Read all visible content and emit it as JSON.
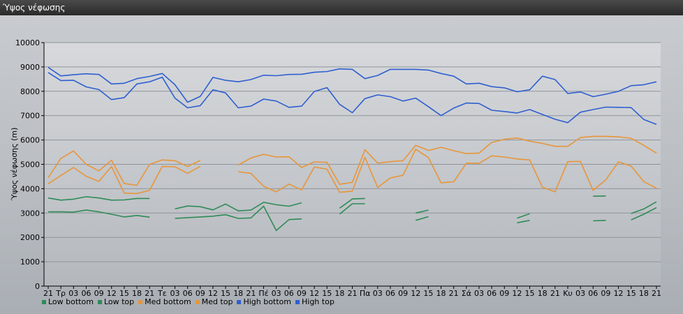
{
  "window": {
    "title": "Ύψος νέφωσης"
  },
  "colors": {
    "low": "#2e8b57",
    "med": "#e8953a",
    "high": "#2f5fd0",
    "grid": "#8f959c",
    "plot_bg_top": "#d7d9dc",
    "plot_bg_bottom": "#b4b8bd"
  },
  "chart_data": {
    "type": "line",
    "title": "",
    "ylabel": "Ύψος νέφωσης (m)",
    "xlabel": "",
    "ylim": [
      0,
      10000
    ],
    "yticks": [
      0,
      1000,
      2000,
      3000,
      4000,
      5000,
      6000,
      7000,
      8000,
      9000,
      10000
    ],
    "grid": true,
    "legend_position": "bottom-left",
    "categories": [
      "21",
      "Τρ",
      "03",
      "06",
      "09",
      "12",
      "15",
      "18",
      "21",
      "Τε",
      "03",
      "06",
      "09",
      "12",
      "15",
      "18",
      "21",
      "Πέ",
      "03",
      "06",
      "09",
      "12",
      "15",
      "18",
      "21",
      "Πα",
      "03",
      "06",
      "09",
      "12",
      "15",
      "18",
      "21",
      "Σά",
      "03",
      "06",
      "09",
      "12",
      "15",
      "18",
      "21",
      "Κυ",
      "03",
      "06",
      "09",
      "12",
      "15",
      "18",
      "21"
    ],
    "series": [
      {
        "name": "Low bottom",
        "color_key": "low",
        "values": [
          3050,
          3050,
          3040,
          3120,
          3050,
          2950,
          2840,
          2900,
          2830,
          null,
          2780,
          2810,
          2840,
          2870,
          2930,
          2780,
          2800,
          3280,
          2280,
          2730,
          2760,
          null,
          null,
          3200,
          3580,
          3600,
          null,
          null,
          null,
          2700,
          2850,
          null,
          null,
          null,
          null,
          null,
          null,
          2600,
          2700,
          null,
          null,
          null,
          null,
          2680,
          2700,
          null,
          2720,
          2950,
          3220
        ]
      },
      {
        "name": "Low top",
        "color_key": "low",
        "values": [
          3620,
          3530,
          3570,
          3670,
          3620,
          3530,
          3540,
          3600,
          3600,
          null,
          3170,
          3290,
          3260,
          3130,
          3370,
          3090,
          3120,
          3440,
          3340,
          3280,
          3420,
          null,
          null,
          2960,
          3380,
          3380,
          null,
          null,
          null,
          3000,
          3120,
          null,
          null,
          null,
          null,
          null,
          null,
          2790,
          2970,
          null,
          null,
          null,
          null,
          3690,
          3700,
          null,
          2980,
          3170,
          3460
        ]
      },
      {
        "name": "Med bottom",
        "color_key": "med",
        "values": [
          4200,
          4540,
          4870,
          4510,
          4300,
          4910,
          3820,
          3800,
          3930,
          4910,
          4900,
          4630,
          4920,
          null,
          null,
          4700,
          4630,
          4100,
          3870,
          4190,
          3950,
          4890,
          4800,
          3850,
          3900,
          5290,
          4050,
          4440,
          4550,
          5620,
          5280,
          4240,
          4280,
          5050,
          5040,
          5350,
          5300,
          5220,
          5180,
          4060,
          3870,
          5110,
          5120,
          3930,
          4360,
          5100,
          4930,
          4290,
          4020
        ]
      },
      {
        "name": "Med top",
        "color_key": "med",
        "values": [
          4450,
          5240,
          5550,
          5000,
          4730,
          5170,
          4210,
          4140,
          5000,
          5180,
          5150,
          4910,
          5160,
          null,
          null,
          4970,
          5260,
          5410,
          5300,
          5310,
          4870,
          5100,
          5080,
          4180,
          4260,
          5600,
          5050,
          5110,
          5150,
          5780,
          5570,
          5700,
          5560,
          5440,
          5460,
          5900,
          6030,
          6080,
          5950,
          5860,
          5740,
          5740,
          6100,
          6150,
          6150,
          6130,
          6070,
          5780,
          5460
        ]
      },
      {
        "name": "High bottom",
        "color_key": "high",
        "values": [
          8770,
          8440,
          8450,
          8180,
          8070,
          7660,
          7740,
          8300,
          8390,
          8580,
          7720,
          7320,
          7410,
          8060,
          7930,
          7320,
          7390,
          7680,
          7600,
          7340,
          7390,
          7990,
          8150,
          7460,
          7120,
          7700,
          7850,
          7780,
          7600,
          7720,
          7370,
          7000,
          7310,
          7520,
          7500,
          7220,
          7170,
          7110,
          7250,
          7050,
          6850,
          6710,
          7140,
          7250,
          7350,
          7340,
          7330,
          6840,
          6640
        ]
      },
      {
        "name": "High top",
        "color_key": "high",
        "values": [
          8980,
          8630,
          8680,
          8720,
          8690,
          8300,
          8330,
          8520,
          8610,
          8730,
          8270,
          7550,
          7790,
          8570,
          8450,
          8390,
          8480,
          8660,
          8640,
          8690,
          8700,
          8780,
          8810,
          8920,
          8900,
          8520,
          8650,
          8900,
          8900,
          8900,
          8870,
          8730,
          8620,
          8300,
          8330,
          8190,
          8140,
          7980,
          8060,
          8620,
          8480,
          7910,
          7970,
          7780,
          7880,
          8000,
          8230,
          8270,
          8390
        ]
      }
    ]
  }
}
